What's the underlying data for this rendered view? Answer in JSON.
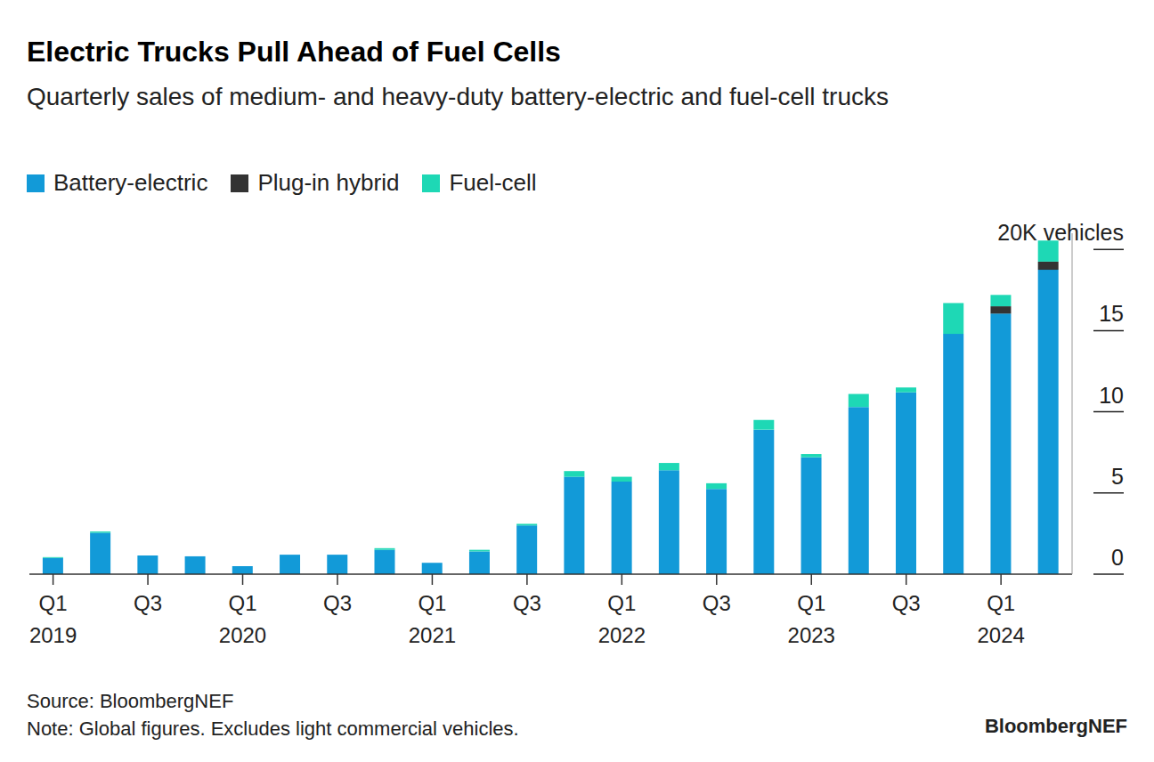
{
  "chart_data": {
    "type": "bar",
    "title": "Electric Trucks Pull Ahead of Fuel Cells",
    "subtitle": "Quarterly sales of medium- and heavy-duty battery-electric and fuel-cell trucks",
    "categories": [
      "Q1\n2019",
      null,
      "Q3",
      null,
      "Q1\n2020",
      null,
      "Q3",
      null,
      "Q1\n2021",
      null,
      "Q3",
      null,
      "Q1\n2022",
      null,
      "Q3",
      null,
      "Q1\n2023",
      null,
      "Q3",
      null,
      "Q1\n2024",
      null
    ],
    "series": [
      {
        "name": "Battery-electric",
        "color": "#129ad8",
        "values": [
          1.0,
          2.55,
          1.15,
          1.1,
          0.5,
          1.2,
          1.2,
          1.5,
          0.7,
          1.4,
          3.0,
          6.0,
          5.7,
          6.4,
          5.25,
          8.9,
          7.2,
          10.3,
          11.2,
          14.8,
          16.05,
          18.75
        ]
      },
      {
        "name": "Plug-in hybrid",
        "color": "#333333",
        "values": [
          0,
          0,
          0,
          0,
          0,
          0,
          0,
          0,
          0,
          0,
          0,
          0,
          0,
          0,
          0,
          0,
          0,
          0,
          0,
          0,
          0.45,
          0.5
        ]
      },
      {
        "name": "Fuel-cell",
        "color": "#1ed8b5",
        "values": [
          0.05,
          0.08,
          0,
          0,
          0,
          0,
          0,
          0.1,
          0,
          0.1,
          0.1,
          0.35,
          0.3,
          0.45,
          0.35,
          0.6,
          0.2,
          0.8,
          0.3,
          1.9,
          0.7,
          1.3
        ]
      }
    ],
    "stacked": true,
    "ylim": [
      0,
      21
    ],
    "yticks": [
      0,
      5,
      10,
      15,
      {
        "value": 20,
        "label": "20K vehicles"
      }
    ],
    "grid": false,
    "legend": "top-left",
    "source": "Source: BloombergNEF",
    "note": "Note: Global figures. Excludes light commercial vehicles.",
    "logo": "BloombergNEF"
  }
}
